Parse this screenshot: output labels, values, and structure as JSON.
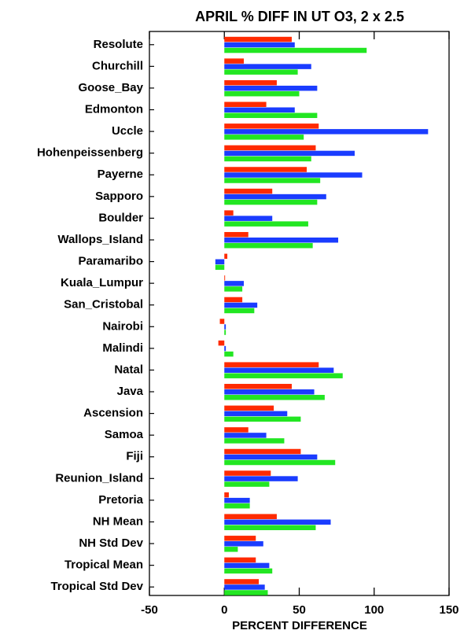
{
  "chart_data": {
    "type": "bar",
    "orientation": "horizontal",
    "title": "APRIL % DIFF IN UT O3, 2 x 2.5",
    "x_label": "PERCENT DIFFERENCE",
    "categories": [
      "Resolute",
      "Churchill",
      "Goose_Bay",
      "Edmonton",
      "Uccle",
      "Hohenpeissenberg",
      "Payerne",
      "Sapporo",
      "Boulder",
      "Wallops_Island",
      "Paramaribo",
      "Kuala_Lumpur",
      "San_Cristobal",
      "Nairobi",
      "Malindi",
      "Natal",
      "Java",
      "Ascension",
      "Samoa",
      "Fiji",
      "Reunion_Island",
      "Pretoria",
      "NH Mean",
      "NH Std Dev",
      "Tropical Mean",
      "Tropical Std Dev"
    ],
    "series": [
      {
        "color": "#ff2a00",
        "values": [
          45,
          13,
          35,
          28,
          63,
          61,
          55,
          32,
          6,
          16,
          2,
          0.5,
          12,
          -3,
          -4,
          63,
          45,
          33,
          16,
          51,
          31,
          3,
          35,
          21,
          21,
          23
        ]
      },
      {
        "color": "#1a3cff",
        "values": [
          47,
          58,
          62,
          47,
          136,
          87,
          92,
          68,
          32,
          76,
          -6,
          13,
          22,
          1,
          1,
          73,
          60,
          42,
          28,
          62,
          49,
          17,
          71,
          26,
          30,
          27
        ]
      },
      {
        "color": "#22e622",
        "values": [
          95,
          49,
          50,
          62,
          53,
          58,
          64,
          62,
          56,
          59,
          -6,
          12,
          20,
          1,
          6,
          79,
          67,
          51,
          40,
          74,
          30,
          17,
          61,
          9,
          32,
          29
        ]
      }
    ],
    "xlim": [
      -50,
      150
    ],
    "xticks": [
      -50,
      0,
      50,
      100,
      150
    ]
  }
}
